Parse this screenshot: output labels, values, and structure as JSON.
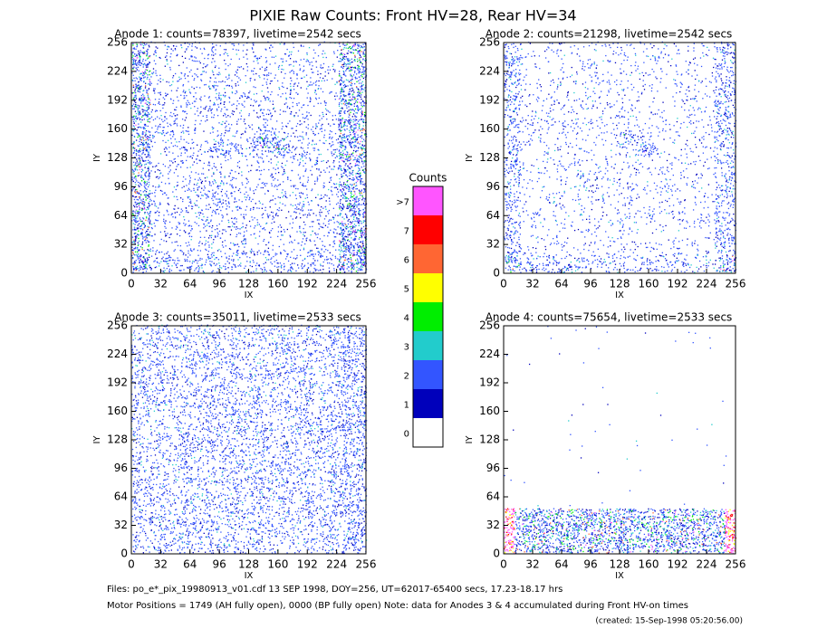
{
  "title": "PIXIE Raw Counts:  Front HV=28, Rear HV=34",
  "chart_data": [
    {
      "type": "heatmap",
      "title": "Anode 1: counts=78397, livetime=2542 secs",
      "xlabel": "IX",
      "ylabel": "IY",
      "xlim": [
        0,
        256
      ],
      "ylim": [
        0,
        256
      ],
      "xticks": [
        0,
        32,
        64,
        96,
        128,
        160,
        192,
        224,
        256
      ],
      "yticks": [
        0,
        32,
        64,
        96,
        128,
        160,
        192,
        224,
        256
      ]
    },
    {
      "type": "heatmap",
      "title": "Anode 2: counts=21298, livetime=2542 secs",
      "xlabel": "IX",
      "ylabel": "IY",
      "xlim": [
        0,
        256
      ],
      "ylim": [
        0,
        256
      ],
      "xticks": [
        0,
        32,
        64,
        96,
        128,
        160,
        192,
        224,
        256
      ],
      "yticks": [
        0,
        32,
        64,
        96,
        128,
        160,
        192,
        224,
        256
      ]
    },
    {
      "type": "heatmap",
      "title": "Anode 3: counts=35011, livetime=2533 secs",
      "xlabel": "IX",
      "ylabel": "IY",
      "xlim": [
        0,
        256
      ],
      "ylim": [
        0,
        256
      ],
      "xticks": [
        0,
        32,
        64,
        96,
        128,
        160,
        192,
        224,
        256
      ],
      "yticks": [
        0,
        32,
        64,
        96,
        128,
        160,
        192,
        224,
        256
      ]
    },
    {
      "type": "heatmap",
      "title": "Anode 4: counts=75654, livetime=2533 secs",
      "xlabel": "IX",
      "ylabel": "IY",
      "xlim": [
        0,
        256
      ],
      "ylim": [
        0,
        256
      ],
      "xticks": [
        0,
        32,
        64,
        96,
        128,
        160,
        192,
        224,
        256
      ],
      "yticks": [
        0,
        32,
        64,
        96,
        128,
        160,
        192,
        224,
        256
      ]
    }
  ],
  "colorbar": {
    "title": "Counts",
    "levels": [
      {
        "label": ">7",
        "color": "#ff55ff"
      },
      {
        "label": "7",
        "color": "#ff0000"
      },
      {
        "label": "6",
        "color": "#ff6633"
      },
      {
        "label": "5",
        "color": "#ffff00"
      },
      {
        "label": "4",
        "color": "#00ee00"
      },
      {
        "label": "3",
        "color": "#22cccc"
      },
      {
        "label": "2",
        "color": "#3355ff"
      },
      {
        "label": "1",
        "color": "#0000bb"
      },
      {
        "label": "0",
        "color": "#ffffff"
      }
    ]
  },
  "footer": {
    "files": "Files: po_e*_pix_19980913_v01.cdf    13 SEP 1998, DOY=256, UT=62017-65400 secs, 17.23-18.17 hrs",
    "motor": "Motor Positions = 1749 (AH fully open), 0000 (BP fully open)    Note: data for Anodes 3 & 4 accumulated during Front HV-on times",
    "created": "(created: 15-Sep-1998 05:20:56.00)"
  }
}
